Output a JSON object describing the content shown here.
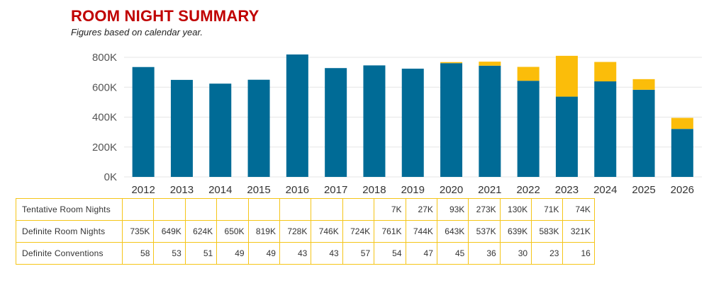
{
  "header": {
    "title": "ROOM NIGHT SUMMARY",
    "subtitle": "Figures based on calendar year."
  },
  "colors": {
    "definite": "#006b96",
    "tentative": "#fbbd0a",
    "grid": "#e6e6e6",
    "table_border": "#f5c518"
  },
  "chart_data": {
    "type": "bar",
    "stacked": true,
    "categories": [
      "2012",
      "2013",
      "2014",
      "2015",
      "2016",
      "2017",
      "2018",
      "2019",
      "2020",
      "2021",
      "2022",
      "2023",
      "2024",
      "2025",
      "2026"
    ],
    "series": [
      {
        "name": "Definite Room Nights",
        "color": "#006b96",
        "values": [
          735,
          649,
          624,
          650,
          819,
          728,
          746,
          724,
          761,
          744,
          643,
          537,
          639,
          583,
          321
        ]
      },
      {
        "name": "Tentative Room Nights",
        "color": "#fbbd0a",
        "values": [
          0,
          0,
          0,
          0,
          0,
          0,
          0,
          0,
          7,
          27,
          93,
          273,
          130,
          71,
          74
        ]
      }
    ],
    "unit": "thousands",
    "ylim": [
      0,
      800
    ],
    "yticks": [
      0,
      200,
      400,
      600,
      800
    ],
    "ytick_labels": [
      "0K",
      "200K",
      "400K",
      "600K",
      "800K"
    ],
    "grid": true,
    "legend": "none"
  },
  "table": {
    "rows": [
      {
        "label": "Tentative Room Nights",
        "cells": [
          "",
          "",
          "",
          "",
          "",
          "",
          "",
          "",
          "7K",
          "27K",
          "93K",
          "273K",
          "130K",
          "71K",
          "74K"
        ]
      },
      {
        "label": "Definite Room Nights",
        "cells": [
          "735K",
          "649K",
          "624K",
          "650K",
          "819K",
          "728K",
          "746K",
          "724K",
          "761K",
          "744K",
          "643K",
          "537K",
          "639K",
          "583K",
          "321K"
        ]
      },
      {
        "label": "Definite Conventions",
        "cells": [
          "58",
          "53",
          "51",
          "49",
          "49",
          "43",
          "43",
          "57",
          "54",
          "47",
          "45",
          "36",
          "30",
          "23",
          "16"
        ]
      }
    ]
  }
}
